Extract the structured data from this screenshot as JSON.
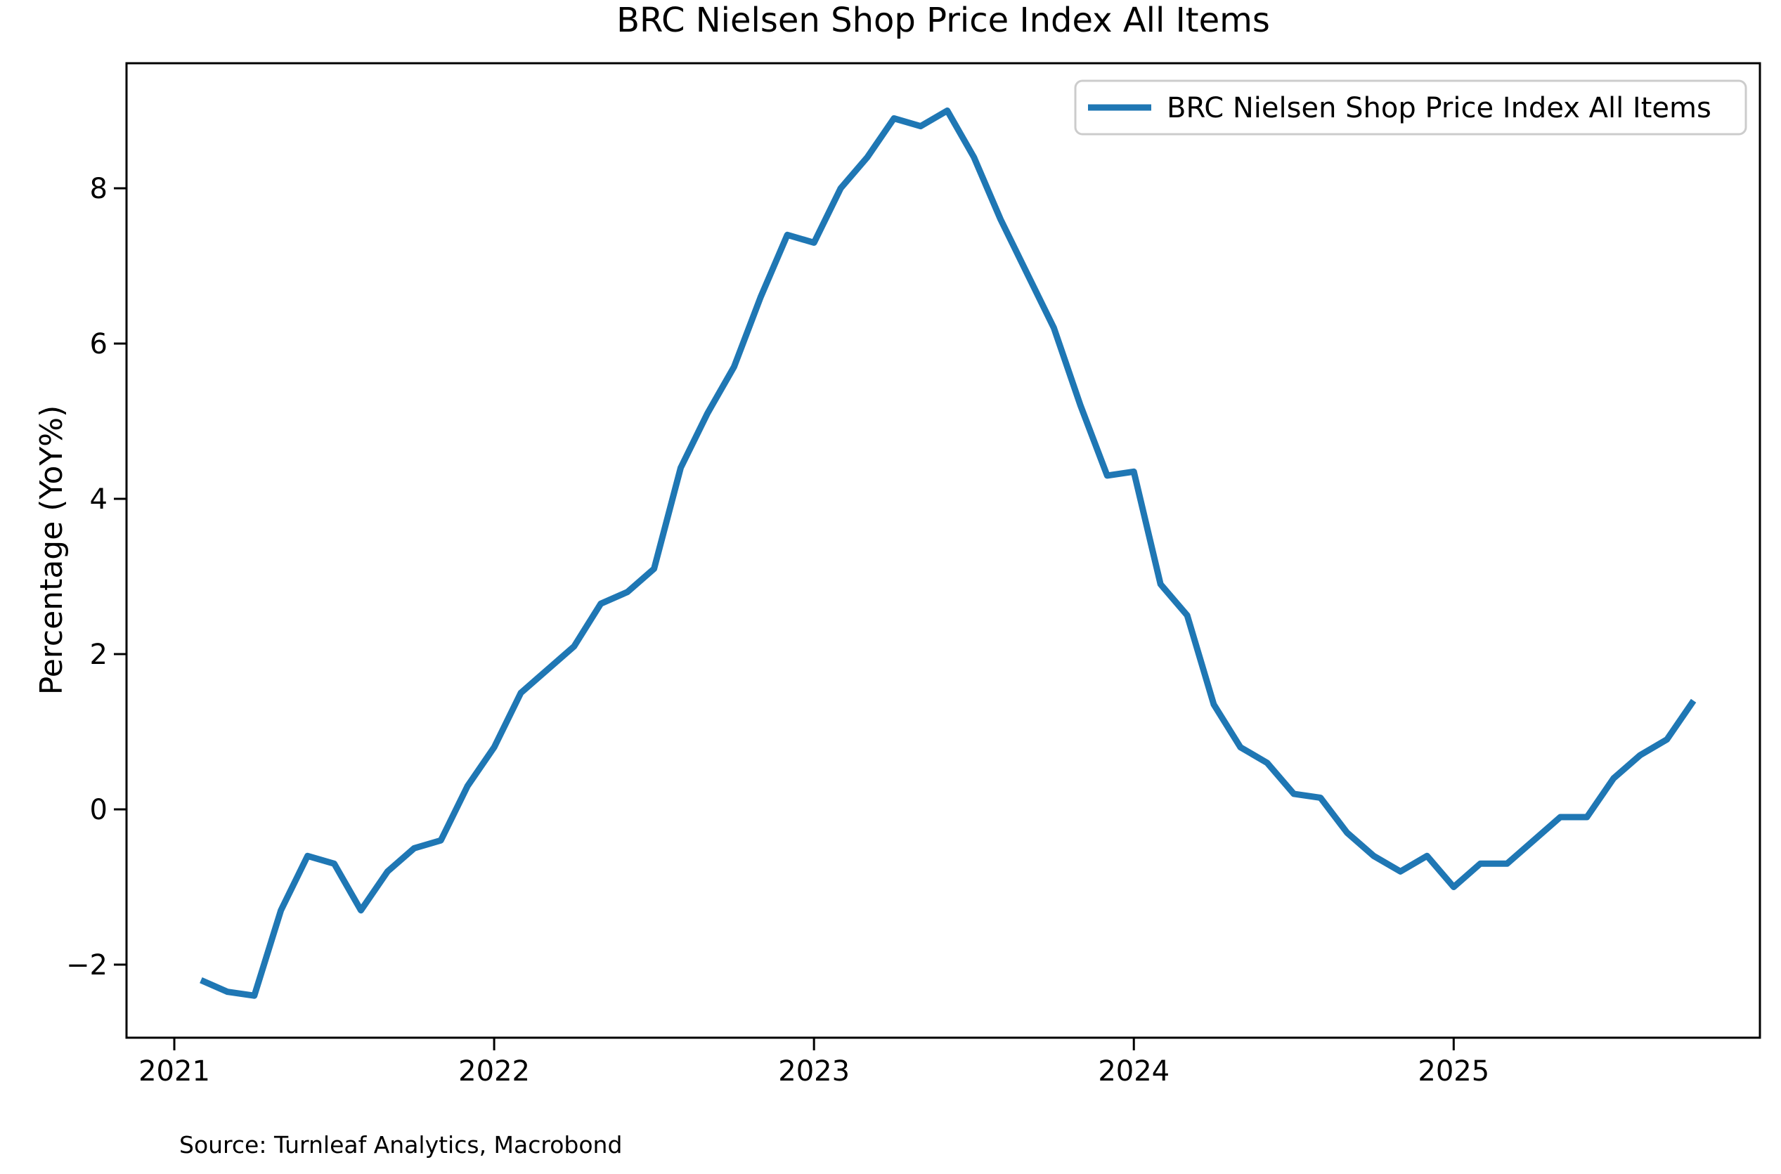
{
  "figure": {
    "title": "BRC Nielsen Shop Price Index All Items",
    "source_note": "Source: Turnleaf Analytics, Macrobond",
    "background_color": "#ffffff",
    "text_color": "#000000"
  },
  "legend": {
    "label": "BRC Nielsen Shop Price Index All Items",
    "position": "upper right",
    "border_color": "#cccccc",
    "line_color": "#1f77b4"
  },
  "chart_data": {
    "type": "line",
    "title": "BRC Nielsen Shop Price Index All Items",
    "xlabel": "",
    "ylabel": "Percentage (YoY%)",
    "grid": false,
    "legend_position": "upper right",
    "x_tick_labels": [
      "2021",
      "2022",
      "2023",
      "2024",
      "2025"
    ],
    "y_tick_values": [
      8,
      6,
      4,
      2,
      0,
      -2
    ],
    "y_tick_labels": [
      "8",
      "6",
      "4",
      "2",
      "0",
      "−2"
    ],
    "ylim": [
      -2.94,
      9.61
    ],
    "series": [
      {
        "name": "BRC Nielsen Shop Price Index All Items",
        "color": "#1f77b4",
        "x": [
          "2021-01",
          "2021-02",
          "2021-03",
          "2021-04",
          "2021-05",
          "2021-06",
          "2021-07",
          "2021-08",
          "2021-09",
          "2021-10",
          "2021-11",
          "2021-12",
          "2022-01",
          "2022-02",
          "2022-03",
          "2022-04",
          "2022-05",
          "2022-06",
          "2022-07",
          "2022-08",
          "2022-09",
          "2022-10",
          "2022-11",
          "2022-12",
          "2023-01",
          "2023-02",
          "2023-03",
          "2023-04",
          "2023-05",
          "2023-06",
          "2023-07",
          "2023-08",
          "2023-09",
          "2023-10",
          "2023-11",
          "2023-12",
          "2024-01",
          "2024-02",
          "2024-03",
          "2024-04",
          "2024-05",
          "2024-06",
          "2024-07",
          "2024-08",
          "2024-09",
          "2024-10",
          "2024-11",
          "2024-12",
          "2025-01",
          "2025-02",
          "2025-03",
          "2025-04",
          "2025-05",
          "2025-06",
          "2025-07",
          "2025-08",
          "2025-09"
        ],
        "values": [
          -2.2,
          -2.35,
          -2.4,
          -1.3,
          -0.6,
          -0.7,
          -1.3,
          -0.8,
          -0.5,
          -0.4,
          0.3,
          0.8,
          1.5,
          1.8,
          2.1,
          2.65,
          2.8,
          3.1,
          4.4,
          5.1,
          5.7,
          6.6,
          7.4,
          7.3,
          8.0,
          8.4,
          8.9,
          8.8,
          9.0,
          8.4,
          7.6,
          6.9,
          6.2,
          5.2,
          4.3,
          4.35,
          2.9,
          2.5,
          1.35,
          0.8,
          0.6,
          0.2,
          0.15,
          -0.3,
          -0.6,
          -0.8,
          -0.6,
          -1.0,
          -0.7,
          -0.7,
          -0.4,
          -0.1,
          -0.1,
          0.4,
          0.7,
          0.9,
          1.4
        ]
      }
    ]
  }
}
